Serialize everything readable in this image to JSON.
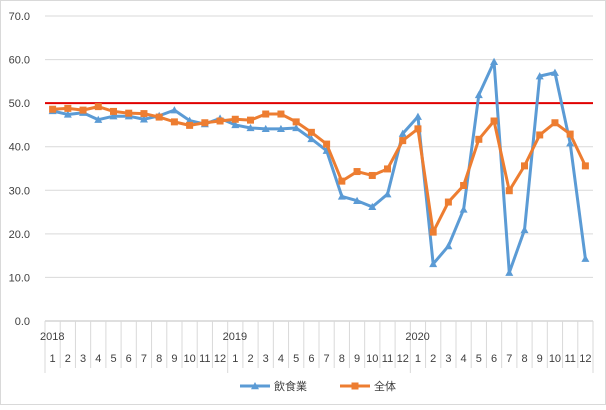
{
  "chart_data": {
    "type": "line",
    "title": "",
    "xlabel": "",
    "ylabel": "",
    "ylim": [
      0,
      70
    ],
    "y_ticks": [
      "0.0",
      "10.0",
      "20.0",
      "30.0",
      "40.0",
      "50.0",
      "60.0",
      "70.0"
    ],
    "year_labels": [
      {
        "label": "2018",
        "start_index": 0
      },
      {
        "label": "2019",
        "start_index": 12
      },
      {
        "label": "2020",
        "start_index": 24
      }
    ],
    "categories": [
      "1",
      "2",
      "3",
      "4",
      "5",
      "6",
      "7",
      "8",
      "9",
      "10",
      "11",
      "12",
      "1",
      "2",
      "3",
      "4",
      "5",
      "6",
      "7",
      "8",
      "9",
      "10",
      "11",
      "12",
      "1",
      "2",
      "3",
      "4",
      "5",
      "6",
      "7",
      "8",
      "9",
      "10",
      "11",
      "12"
    ],
    "reference_line": {
      "value": 50,
      "color": "#e00000"
    },
    "legend_position": "bottom",
    "grid": true,
    "series": [
      {
        "name": "飲食業",
        "color": "#5b9bd5",
        "marker": "triangle",
        "values": [
          48.2,
          47.4,
          47.8,
          46.2,
          47.0,
          47.0,
          46.3,
          47.1,
          48.4,
          46.0,
          45.2,
          46.5,
          45.0,
          44.3,
          44.1,
          44.1,
          44.3,
          41.8,
          39.1,
          28.6,
          27.6,
          26.2,
          29.1,
          43.0,
          46.9,
          13.1,
          17.2,
          25.6,
          51.9,
          59.5,
          11.1,
          20.9,
          56.2,
          57.0,
          40.8,
          14.3
        ]
      },
      {
        "name": "全体",
        "color": "#ed7d31",
        "marker": "square",
        "values": [
          48.6,
          48.8,
          48.4,
          49.2,
          48.1,
          47.7,
          47.6,
          46.8,
          45.7,
          44.9,
          45.5,
          45.9,
          46.3,
          46.1,
          47.5,
          47.5,
          45.7,
          43.3,
          40.6,
          32.1,
          34.3,
          33.4,
          34.9,
          41.4,
          44.1,
          20.4,
          27.3,
          31.1,
          41.7,
          45.9,
          29.9,
          35.6,
          42.7,
          45.5,
          42.9,
          35.6
        ]
      }
    ]
  }
}
